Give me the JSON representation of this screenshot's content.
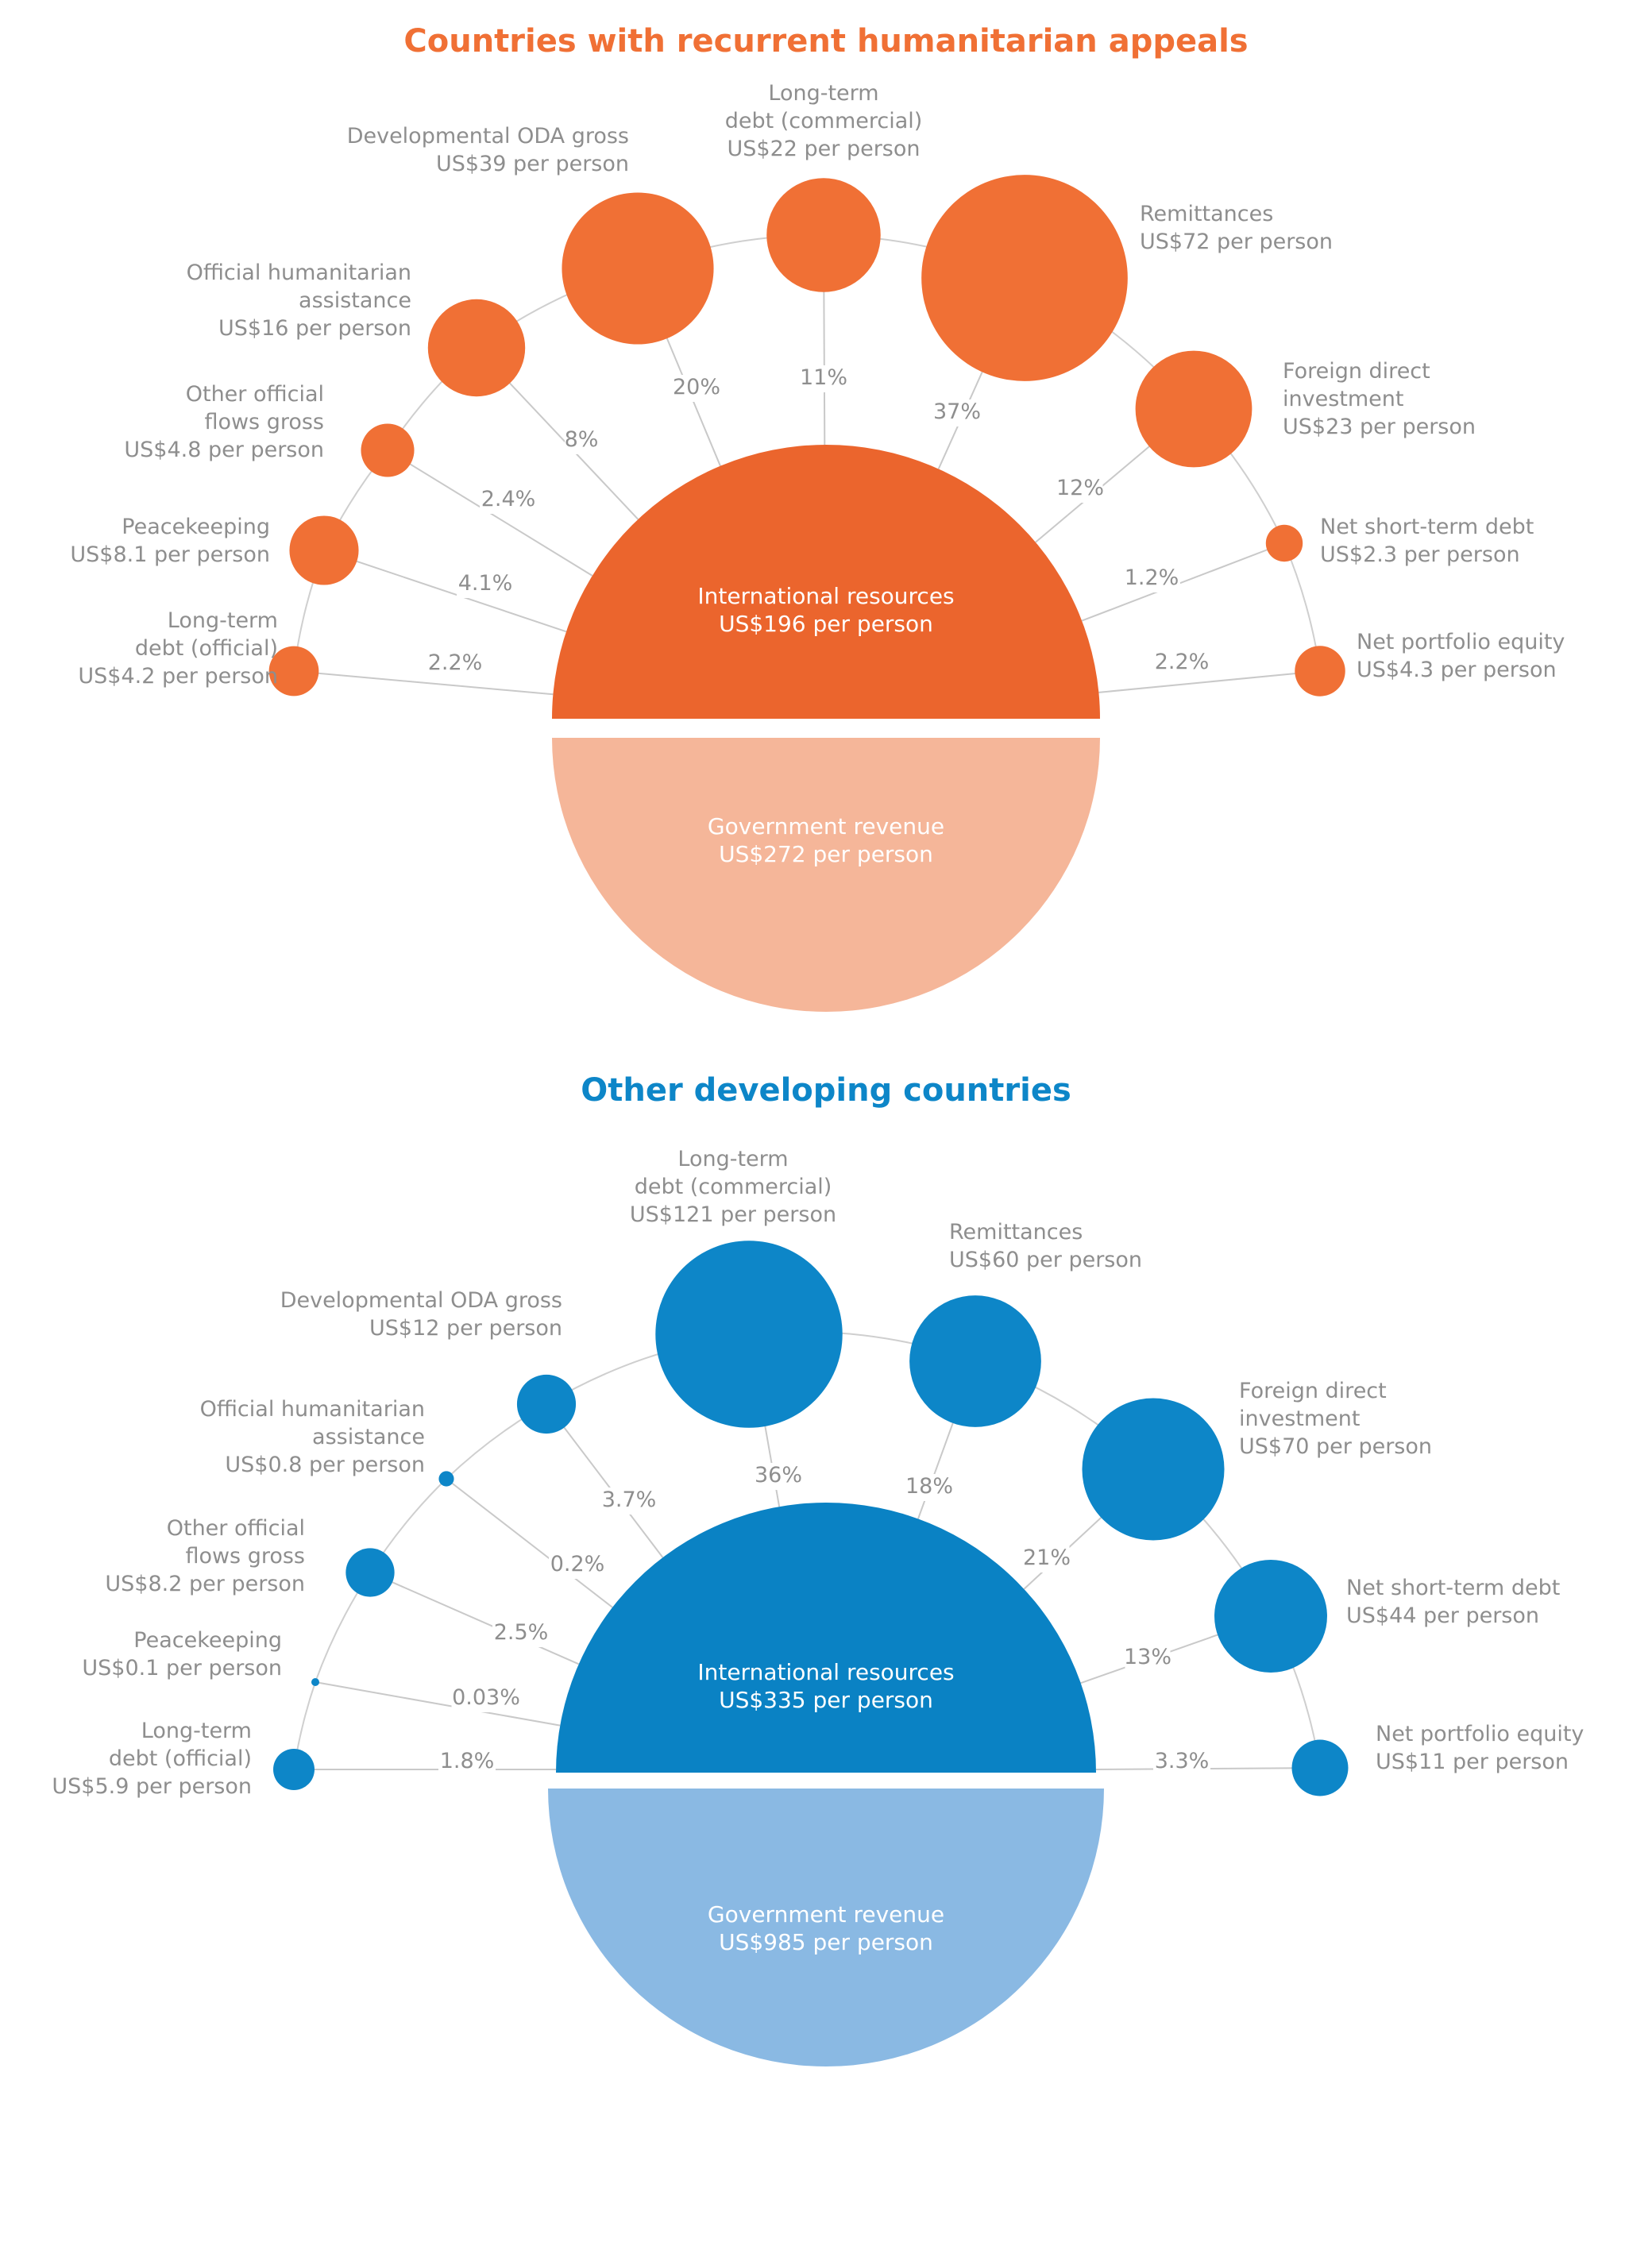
{
  "colors": {
    "orange_title": "#f07035",
    "orange_bubble": "#f07035",
    "orange_center": "#eb652d",
    "orange_light": "#f5b699",
    "blue_title": "#0d86c8",
    "blue_bubble": "#0d86c8",
    "blue_center": "#0a82c4",
    "blue_light": "#8ab9e3"
  },
  "chart_data": [
    {
      "type": "bubble",
      "title": "Countries with recurrent humanitarian appeals",
      "center": {
        "line1": "International resources",
        "line2": "US$196 per person",
        "value": 196
      },
      "bottom": {
        "line1": "Government revenue",
        "line2": "US$272 per person",
        "value": 272
      },
      "flows": [
        {
          "lines": [
            "Long-term",
            "debt (official)",
            "US$4.2 per person"
          ],
          "value": 4.2,
          "share": "2.2%"
        },
        {
          "lines": [
            "Peacekeeping",
            "US$8.1 per person"
          ],
          "value": 8.1,
          "share": "4.1%"
        },
        {
          "lines": [
            "Other official",
            "flows gross",
            "US$4.8 per person"
          ],
          "value": 4.8,
          "share": "2.4%"
        },
        {
          "lines": [
            "Official humanitarian",
            "assistance",
            "US$16 per person"
          ],
          "value": 16,
          "share": "8%"
        },
        {
          "lines": [
            "Developmental ODA gross",
            "US$39 per person"
          ],
          "value": 39,
          "share": "20%"
        },
        {
          "lines": [
            "Long-term",
            "debt (commercial)",
            "US$22 per person"
          ],
          "value": 22,
          "share": "11%"
        },
        {
          "lines": [
            "Remittances",
            "US$72 per person"
          ],
          "value": 72,
          "share": "37%"
        },
        {
          "lines": [
            "Foreign direct",
            "investment",
            "US$23 per person"
          ],
          "value": 23,
          "share": "12%"
        },
        {
          "lines": [
            "Net short-term debt",
            "US$2.3 per person"
          ],
          "value": 2.3,
          "share": "1.2%"
        },
        {
          "lines": [
            "Net portfolio equity",
            "US$4.3 per person"
          ],
          "value": 4.3,
          "share": "2.2%"
        }
      ]
    },
    {
      "type": "bubble",
      "title": "Other developing countries",
      "center": {
        "line1": "International resources",
        "line2": "US$335 per person",
        "value": 335
      },
      "bottom": {
        "line1": "Government revenue",
        "line2": "US$985 per person",
        "value": 985
      },
      "flows": [
        {
          "lines": [
            "Long-term",
            "debt (official)",
            "US$5.9 per person"
          ],
          "value": 5.9,
          "share": "1.8%"
        },
        {
          "lines": [
            "Peacekeeping",
            "US$0.1 per person"
          ],
          "value": 0.1,
          "share": "0.03%"
        },
        {
          "lines": [
            "Other official",
            "flows gross",
            "US$8.2 per person"
          ],
          "value": 8.2,
          "share": "2.5%"
        },
        {
          "lines": [
            "Official humanitarian",
            "assistance",
            "US$0.8 per person"
          ],
          "value": 0.8,
          "share": "0.2%"
        },
        {
          "lines": [
            "Developmental ODA gross",
            "US$12 per person"
          ],
          "value": 12,
          "share": "3.7%"
        },
        {
          "lines": [
            "Long-term",
            "debt (commercial)",
            "US$121 per person"
          ],
          "value": 121,
          "share": "36%"
        },
        {
          "lines": [
            "Remittances",
            "US$60 per person"
          ],
          "value": 60,
          "share": "18%"
        },
        {
          "lines": [
            "Foreign direct",
            "investment",
            "US$70 per person"
          ],
          "value": 70,
          "share": "21%"
        },
        {
          "lines": [
            "Net short-term debt",
            "US$44 per person"
          ],
          "value": 44,
          "share": "13%"
        },
        {
          "lines": [
            "Net portfolio equity",
            "US$11 per person"
          ],
          "value": 11,
          "share": "3.3%"
        }
      ]
    }
  ]
}
